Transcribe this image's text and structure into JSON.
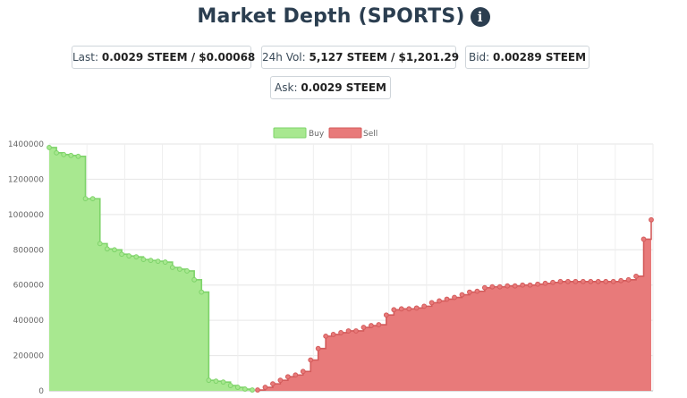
{
  "header": {
    "title": "Market Depth (SPORTS)",
    "info_icon": "info-circle-icon"
  },
  "stats": {
    "last_label": "Last:",
    "last_value": "0.0029 STEEM / $0.00068",
    "vol_label": "24h Vol:",
    "vol_value": "5,127 STEEM / $1,201.29",
    "bid_label": "Bid:",
    "bid_value": "0.00289 STEEM",
    "ask_label": "Ask:",
    "ask_value": "0.0029 STEEM"
  },
  "colors": {
    "buy_fill": "#a8e890",
    "buy_line": "#7ed36a",
    "sell_fill": "#e87a7a",
    "sell_line": "#d35b5b",
    "title": "#2b3e50"
  },
  "chart_data": {
    "type": "area",
    "legend": [
      "Buy",
      "Sell"
    ],
    "legend_position": "top",
    "grid": true,
    "ylim": [
      0,
      1400000
    ],
    "yticks": [
      "0",
      "200000",
      "400000",
      "600000",
      "800000",
      "1000000",
      "1200000",
      "1400000"
    ],
    "series": [
      {
        "name": "Buy",
        "values": [
          1380000,
          1350000,
          1340000,
          1335000,
          1330000,
          1090000,
          1090000,
          835000,
          805000,
          800000,
          775000,
          765000,
          760000,
          745000,
          740000,
          735000,
          730000,
          700000,
          690000,
          680000,
          630000,
          560000,
          60000,
          55000,
          50000,
          30000,
          20000,
          10000,
          5000
        ]
      },
      {
        "name": "Sell",
        "values": [
          5000,
          20000,
          40000,
          60000,
          80000,
          90000,
          110000,
          175000,
          240000,
          310000,
          320000,
          330000,
          340000,
          340000,
          360000,
          370000,
          375000,
          430000,
          460000,
          465000,
          465000,
          470000,
          480000,
          500000,
          510000,
          520000,
          530000,
          545000,
          560000,
          565000,
          585000,
          590000,
          590000,
          595000,
          595000,
          600000,
          600000,
          605000,
          610000,
          615000,
          620000,
          620000,
          620000,
          620000,
          620000,
          620000,
          620000,
          620000,
          625000,
          630000,
          650000,
          860000,
          970000
        ]
      }
    ]
  }
}
